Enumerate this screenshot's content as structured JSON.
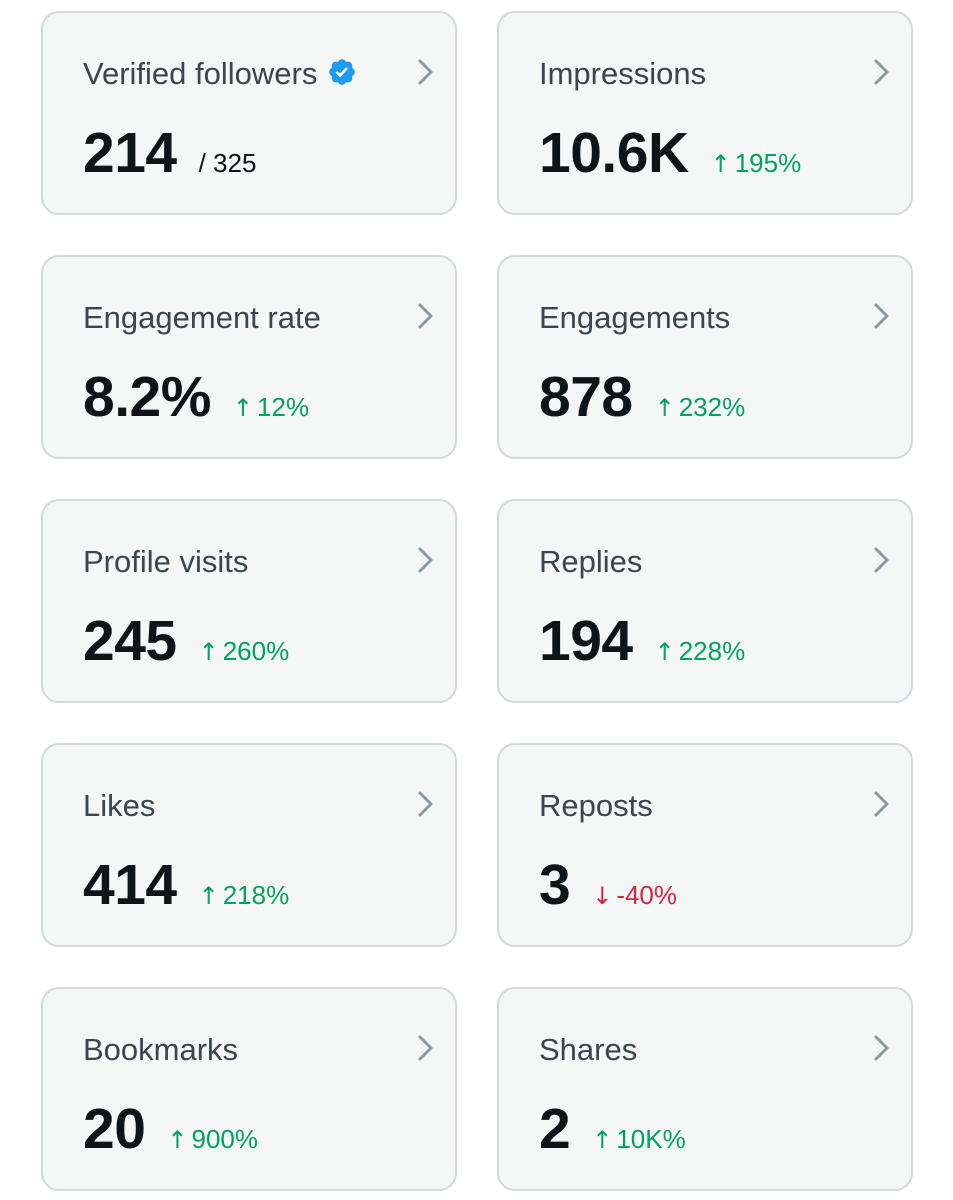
{
  "colors": {
    "card_background": "#f5f7f7",
    "card_border": "#cfd9de",
    "title_text": "#3a4550",
    "value_text": "#0f1419",
    "positive": "#00a35c",
    "negative": "#d9253f",
    "verified_badge": "#1d9bf0",
    "chevron": "#8a98a5"
  },
  "metrics": [
    {
      "title": "Verified followers",
      "value": "214",
      "suffix": "/ 325",
      "icon": "verified-badge-icon"
    },
    {
      "title": "Impressions",
      "value": "10.6K",
      "change_arrow": "↑",
      "change": "195%",
      "direction": "up"
    },
    {
      "title": "Engagement rate",
      "value": "8.2%",
      "change_arrow": "↑",
      "change": "12%",
      "direction": "up"
    },
    {
      "title": "Engagements",
      "value": "878",
      "change_arrow": "↑",
      "change": "232%",
      "direction": "up"
    },
    {
      "title": "Profile visits",
      "value": "245",
      "change_arrow": "↑",
      "change": "260%",
      "direction": "up"
    },
    {
      "title": "Replies",
      "value": "194",
      "change_arrow": "↑",
      "change": "228%",
      "direction": "up"
    },
    {
      "title": "Likes",
      "value": "414",
      "change_arrow": "↑",
      "change": "218%",
      "direction": "up"
    },
    {
      "title": "Reposts",
      "value": "3",
      "change_arrow": "↓",
      "change": "-40%",
      "direction": "down"
    },
    {
      "title": "Bookmarks",
      "value": "20",
      "change_arrow": "↑",
      "change": "900%",
      "direction": "up"
    },
    {
      "title": "Shares",
      "value": "2",
      "change_arrow": "↑",
      "change": "10K%",
      "direction": "up"
    }
  ]
}
